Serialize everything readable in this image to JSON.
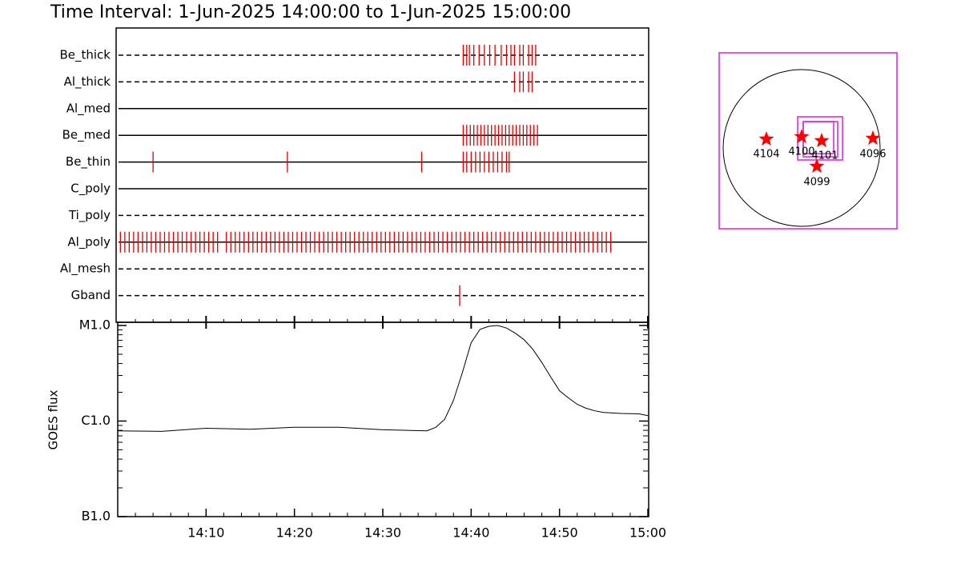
{
  "chart_data": {
    "type": "timeline",
    "title": "Time Interval:  1-Jun-2025 14:00:00 to  1-Jun-2025 15:00:00",
    "xlim": [
      0,
      60
    ],
    "xticks": [
      {
        "value": 10,
        "label": "14:10"
      },
      {
        "value": 20,
        "label": "14:20"
      },
      {
        "value": 30,
        "label": "14:30"
      },
      {
        "value": 40,
        "label": "14:40"
      },
      {
        "value": 50,
        "label": "14:50"
      },
      {
        "value": 60,
        "label": "15:00"
      }
    ],
    "event_color": "#e00000",
    "series": [
      {
        "name": "Be_thick",
        "style": "dashed",
        "values": [
          39.1,
          39.5,
          39.8,
          40.3,
          40.9,
          41.5,
          42.1,
          42.7,
          43.4,
          44.0,
          44.5,
          44.9,
          45.5,
          45.9,
          46.5,
          46.9,
          47.3
        ]
      },
      {
        "name": "Al_thick",
        "style": "dashed",
        "values": [
          44.9,
          45.5,
          45.9,
          46.5,
          46.9
        ]
      },
      {
        "name": "Al_med",
        "style": "solid",
        "values": []
      },
      {
        "name": "Be_med",
        "style": "solid",
        "values": [
          39.1,
          39.5,
          39.9,
          40.3,
          40.7,
          41.1,
          41.5,
          41.9,
          42.3,
          42.7,
          43.1,
          43.5,
          43.9,
          44.3,
          44.7,
          45.1,
          45.5,
          45.9,
          46.3,
          46.7,
          47.1,
          47.5
        ]
      },
      {
        "name": "Be_thin",
        "style": "solid",
        "values": [
          4.0,
          19.2,
          34.4,
          39.1,
          39.5,
          40.0,
          40.5,
          41.0,
          41.5,
          42.0,
          42.5,
          43.0,
          43.5,
          44.0,
          44.3
        ]
      },
      {
        "name": "C_poly",
        "style": "solid",
        "values": []
      },
      {
        "name": "Ti_poly",
        "style": "dashed",
        "values": []
      },
      {
        "name": "Al_poly",
        "style": "solid",
        "values": [
          0.3,
          0.8,
          1.3,
          1.8,
          2.3,
          2.8,
          3.3,
          3.8,
          4.3,
          4.8,
          5.3,
          5.8,
          6.3,
          6.8,
          7.3,
          7.8,
          8.3,
          8.8,
          9.3,
          9.8,
          10.3,
          10.8,
          11.3,
          12.3,
          12.8,
          13.3,
          13.8,
          14.3,
          14.8,
          15.3,
          15.8,
          16.3,
          16.8,
          17.3,
          17.8,
          18.3,
          18.8,
          19.3,
          19.8,
          20.3,
          20.8,
          21.3,
          21.8,
          22.3,
          22.8,
          23.3,
          23.8,
          24.3,
          24.8,
          25.3,
          25.8,
          26.3,
          26.8,
          27.3,
          27.8,
          28.3,
          28.8,
          29.3,
          29.8,
          30.3,
          30.8,
          31.3,
          31.8,
          32.3,
          32.8,
          33.3,
          33.8,
          34.3,
          34.8,
          35.3,
          35.8,
          36.3,
          36.8,
          37.3,
          37.8,
          38.3,
          38.8,
          39.3,
          39.8,
          40.3,
          40.8,
          41.3,
          41.8,
          42.3,
          42.8,
          43.3,
          43.8,
          44.3,
          44.8,
          45.3,
          45.8,
          46.3,
          46.8,
          47.3,
          47.8,
          48.3,
          48.8,
          49.3,
          49.8,
          50.3,
          50.8,
          51.3,
          51.8,
          52.3,
          52.8,
          53.3,
          53.8,
          54.3,
          54.8,
          55.3,
          55.8
        ]
      },
      {
        "name": "Al_mesh",
        "style": "dashed",
        "values": []
      },
      {
        "name": "Gband",
        "style": "dashed",
        "values": [
          38.7
        ]
      }
    ],
    "goes": {
      "ylabel": "GOES flux",
      "log_scale": true,
      "ylim": [
        1e-07,
        1e-05
      ],
      "yticks": [
        {
          "value": 1e-05,
          "label": "M1.0"
        },
        {
          "value": 1e-06,
          "label": "C1.0"
        },
        {
          "value": 1e-07,
          "label": "B1.0"
        }
      ],
      "x": [
        0,
        5,
        10,
        15,
        20,
        25,
        30,
        35,
        36,
        37,
        38,
        39,
        40,
        41,
        42,
        43,
        44,
        45,
        46,
        47,
        48,
        49,
        50,
        51,
        52,
        53,
        54,
        55,
        57,
        59,
        60
      ],
      "values": [
        7.9e-07,
        7.8e-07,
        8.4e-07,
        8.2e-07,
        8.6e-07,
        8.6e-07,
        8.1e-07,
        7.9e-07,
        8.6e-07,
        1.04e-06,
        1.65e-06,
        3.2e-06,
        6.6e-06,
        9.1e-06,
        9.8e-06,
        1e-05,
        9.4e-06,
        8.3e-06,
        7.1e-06,
        5.6e-06,
        4.1e-06,
        2.9e-06,
        2.07e-06,
        1.75e-06,
        1.5e-06,
        1.36e-06,
        1.28e-06,
        1.23e-06,
        1.2e-06,
        1.19e-06,
        1.14e-06
      ]
    }
  },
  "map": {
    "regions": [
      "4104",
      "4100",
      "4101",
      "4096",
      "4099"
    ]
  }
}
